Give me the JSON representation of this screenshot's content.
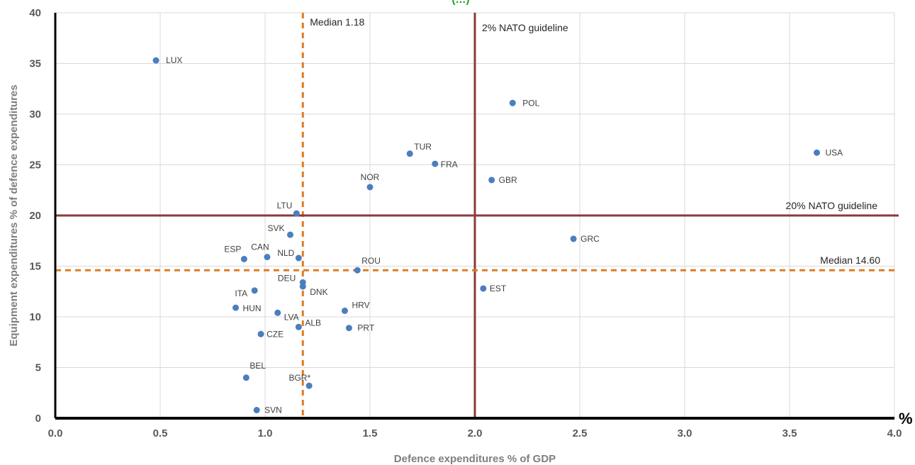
{
  "chart_data": {
    "type": "scatter",
    "title": "(…) ",
    "xlabel": "Defence expenditures % of GDP",
    "ylabel": "Equipment expenditures % of defence expenditures",
    "x_unit_label": "%",
    "xlim": [
      0.0,
      4.0
    ],
    "ylim": [
      0,
      40
    ],
    "x_ticks": [
      "0.0",
      "0.5",
      "1.0",
      "1.5",
      "2.0",
      "2.5",
      "3.0",
      "3.5",
      "4.0"
    ],
    "y_ticks": [
      "0",
      "5",
      "10",
      "15",
      "20",
      "25",
      "30",
      "35",
      "40"
    ],
    "grid": true,
    "reference_lines": [
      {
        "axis": "x",
        "value": 1.18,
        "label": "Median 1.18",
        "style": "dashed",
        "color": "#e07b22"
      },
      {
        "axis": "x",
        "value": 2.0,
        "label": "2% NATO guideline",
        "style": "solid",
        "color": "#8b3a3a"
      },
      {
        "axis": "y",
        "value": 20,
        "label": "20% NATO guideline",
        "style": "solid",
        "color": "#8b3a3a"
      },
      {
        "axis": "y",
        "value": 14.6,
        "label": "Median 14.60",
        "style": "dashed",
        "color": "#e07b22"
      }
    ],
    "points": [
      {
        "label": "LUX",
        "x": 0.48,
        "y": 35.3
      },
      {
        "label": "POL",
        "x": 2.18,
        "y": 31.1
      },
      {
        "label": "USA",
        "x": 3.63,
        "y": 26.2
      },
      {
        "label": "TUR",
        "x": 1.69,
        "y": 26.1
      },
      {
        "label": "FRA",
        "x": 1.81,
        "y": 25.1
      },
      {
        "label": "GBR",
        "x": 2.08,
        "y": 23.5
      },
      {
        "label": "NOR",
        "x": 1.5,
        "y": 22.8
      },
      {
        "label": "LTU",
        "x": 1.15,
        "y": 20.2
      },
      {
        "label": "SVK",
        "x": 1.12,
        "y": 18.1
      },
      {
        "label": "GRC",
        "x": 2.47,
        "y": 17.7
      },
      {
        "label": "ESP",
        "x": 0.9,
        "y": 15.7
      },
      {
        "label": "CAN",
        "x": 1.01,
        "y": 15.9
      },
      {
        "label": "NLD",
        "x": 1.16,
        "y": 15.8
      },
      {
        "label": "ROU",
        "x": 1.44,
        "y": 14.6
      },
      {
        "label": "DEU",
        "x": 1.18,
        "y": 13.4
      },
      {
        "label": "DNK",
        "x": 1.18,
        "y": 13.0
      },
      {
        "label": "EST",
        "x": 2.04,
        "y": 12.8
      },
      {
        "label": "ITA",
        "x": 0.95,
        "y": 12.6
      },
      {
        "label": "HUN",
        "x": 0.86,
        "y": 10.9
      },
      {
        "label": "LVA",
        "x": 1.06,
        "y": 10.4
      },
      {
        "label": "HRV",
        "x": 1.38,
        "y": 10.6
      },
      {
        "label": "ALB",
        "x": 1.16,
        "y": 9.0
      },
      {
        "label": "PRT",
        "x": 1.4,
        "y": 8.9
      },
      {
        "label": "CZE",
        "x": 0.98,
        "y": 8.3
      },
      {
        "label": "BEL",
        "x": 0.91,
        "y": 4.0
      },
      {
        "label": "BGR*",
        "x": 1.21,
        "y": 3.2
      },
      {
        "label": "SVN",
        "x": 0.96,
        "y": 0.8
      }
    ],
    "colors": {
      "point": "#4a7ebf",
      "grid": "#d9d9d9",
      "axis": "#000000",
      "title": "#17a317"
    }
  }
}
